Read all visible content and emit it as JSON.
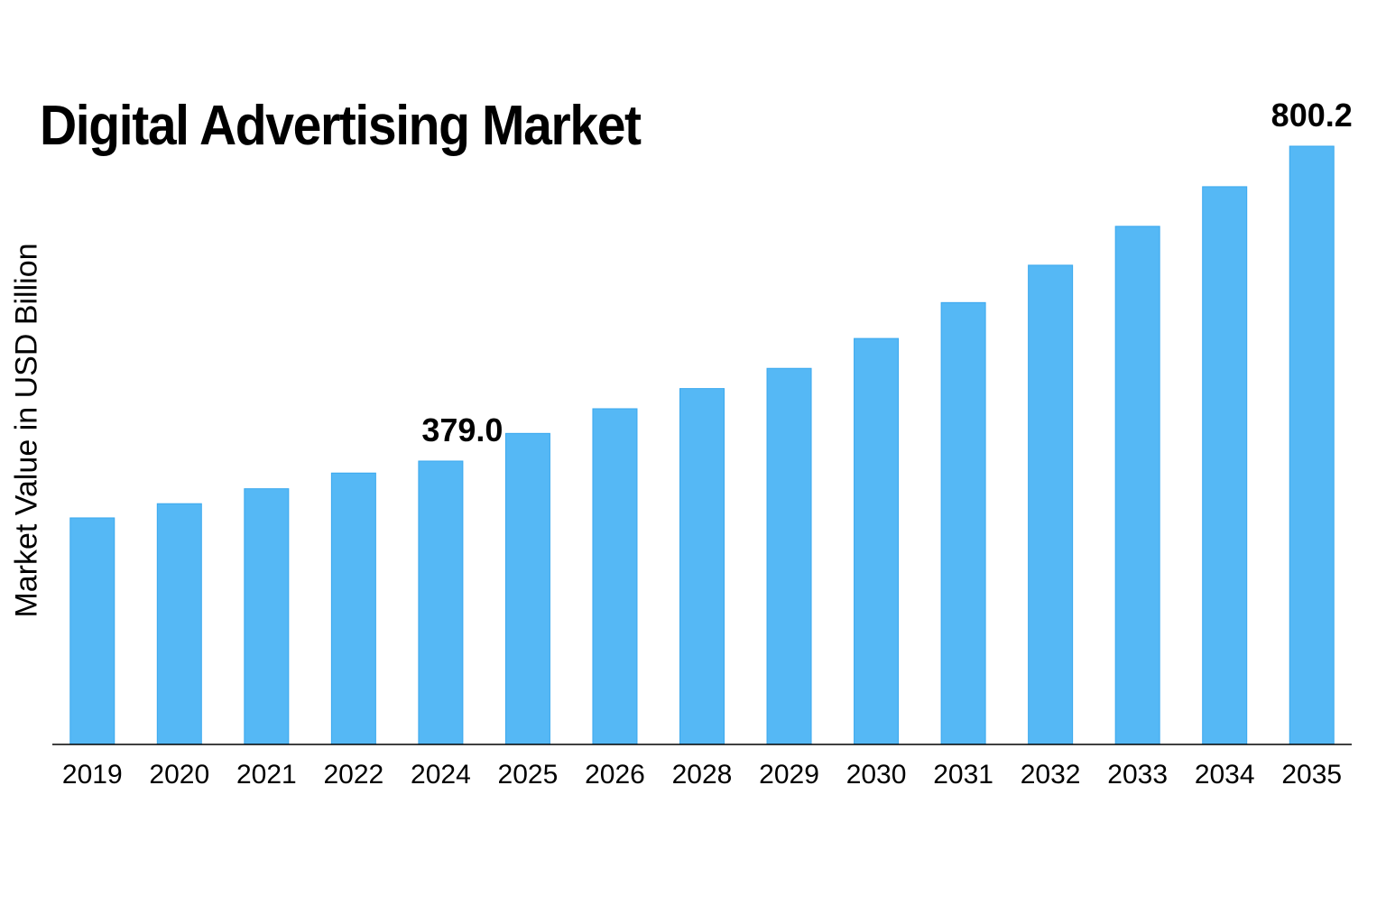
{
  "chart_data": {
    "type": "bar",
    "title": "Digital Advertising Market",
    "xlabel": "",
    "ylabel": "Market Value in USD Billion",
    "categories": [
      "2019",
      "2020",
      "2021",
      "2022",
      "2024",
      "2025",
      "2026",
      "2028",
      "2029",
      "2030",
      "2031",
      "2032",
      "2033",
      "2034",
      "2035"
    ],
    "values": [
      303,
      322,
      342,
      363,
      379.0,
      416,
      449,
      476,
      503,
      543,
      591,
      641,
      693,
      746,
      800.2
    ],
    "data_labels": {
      "2024": "379.0",
      "2035": "800.2"
    },
    "ylim": [
      0,
      800.2
    ],
    "grid": false,
    "bar_color": "#55b8f5"
  }
}
